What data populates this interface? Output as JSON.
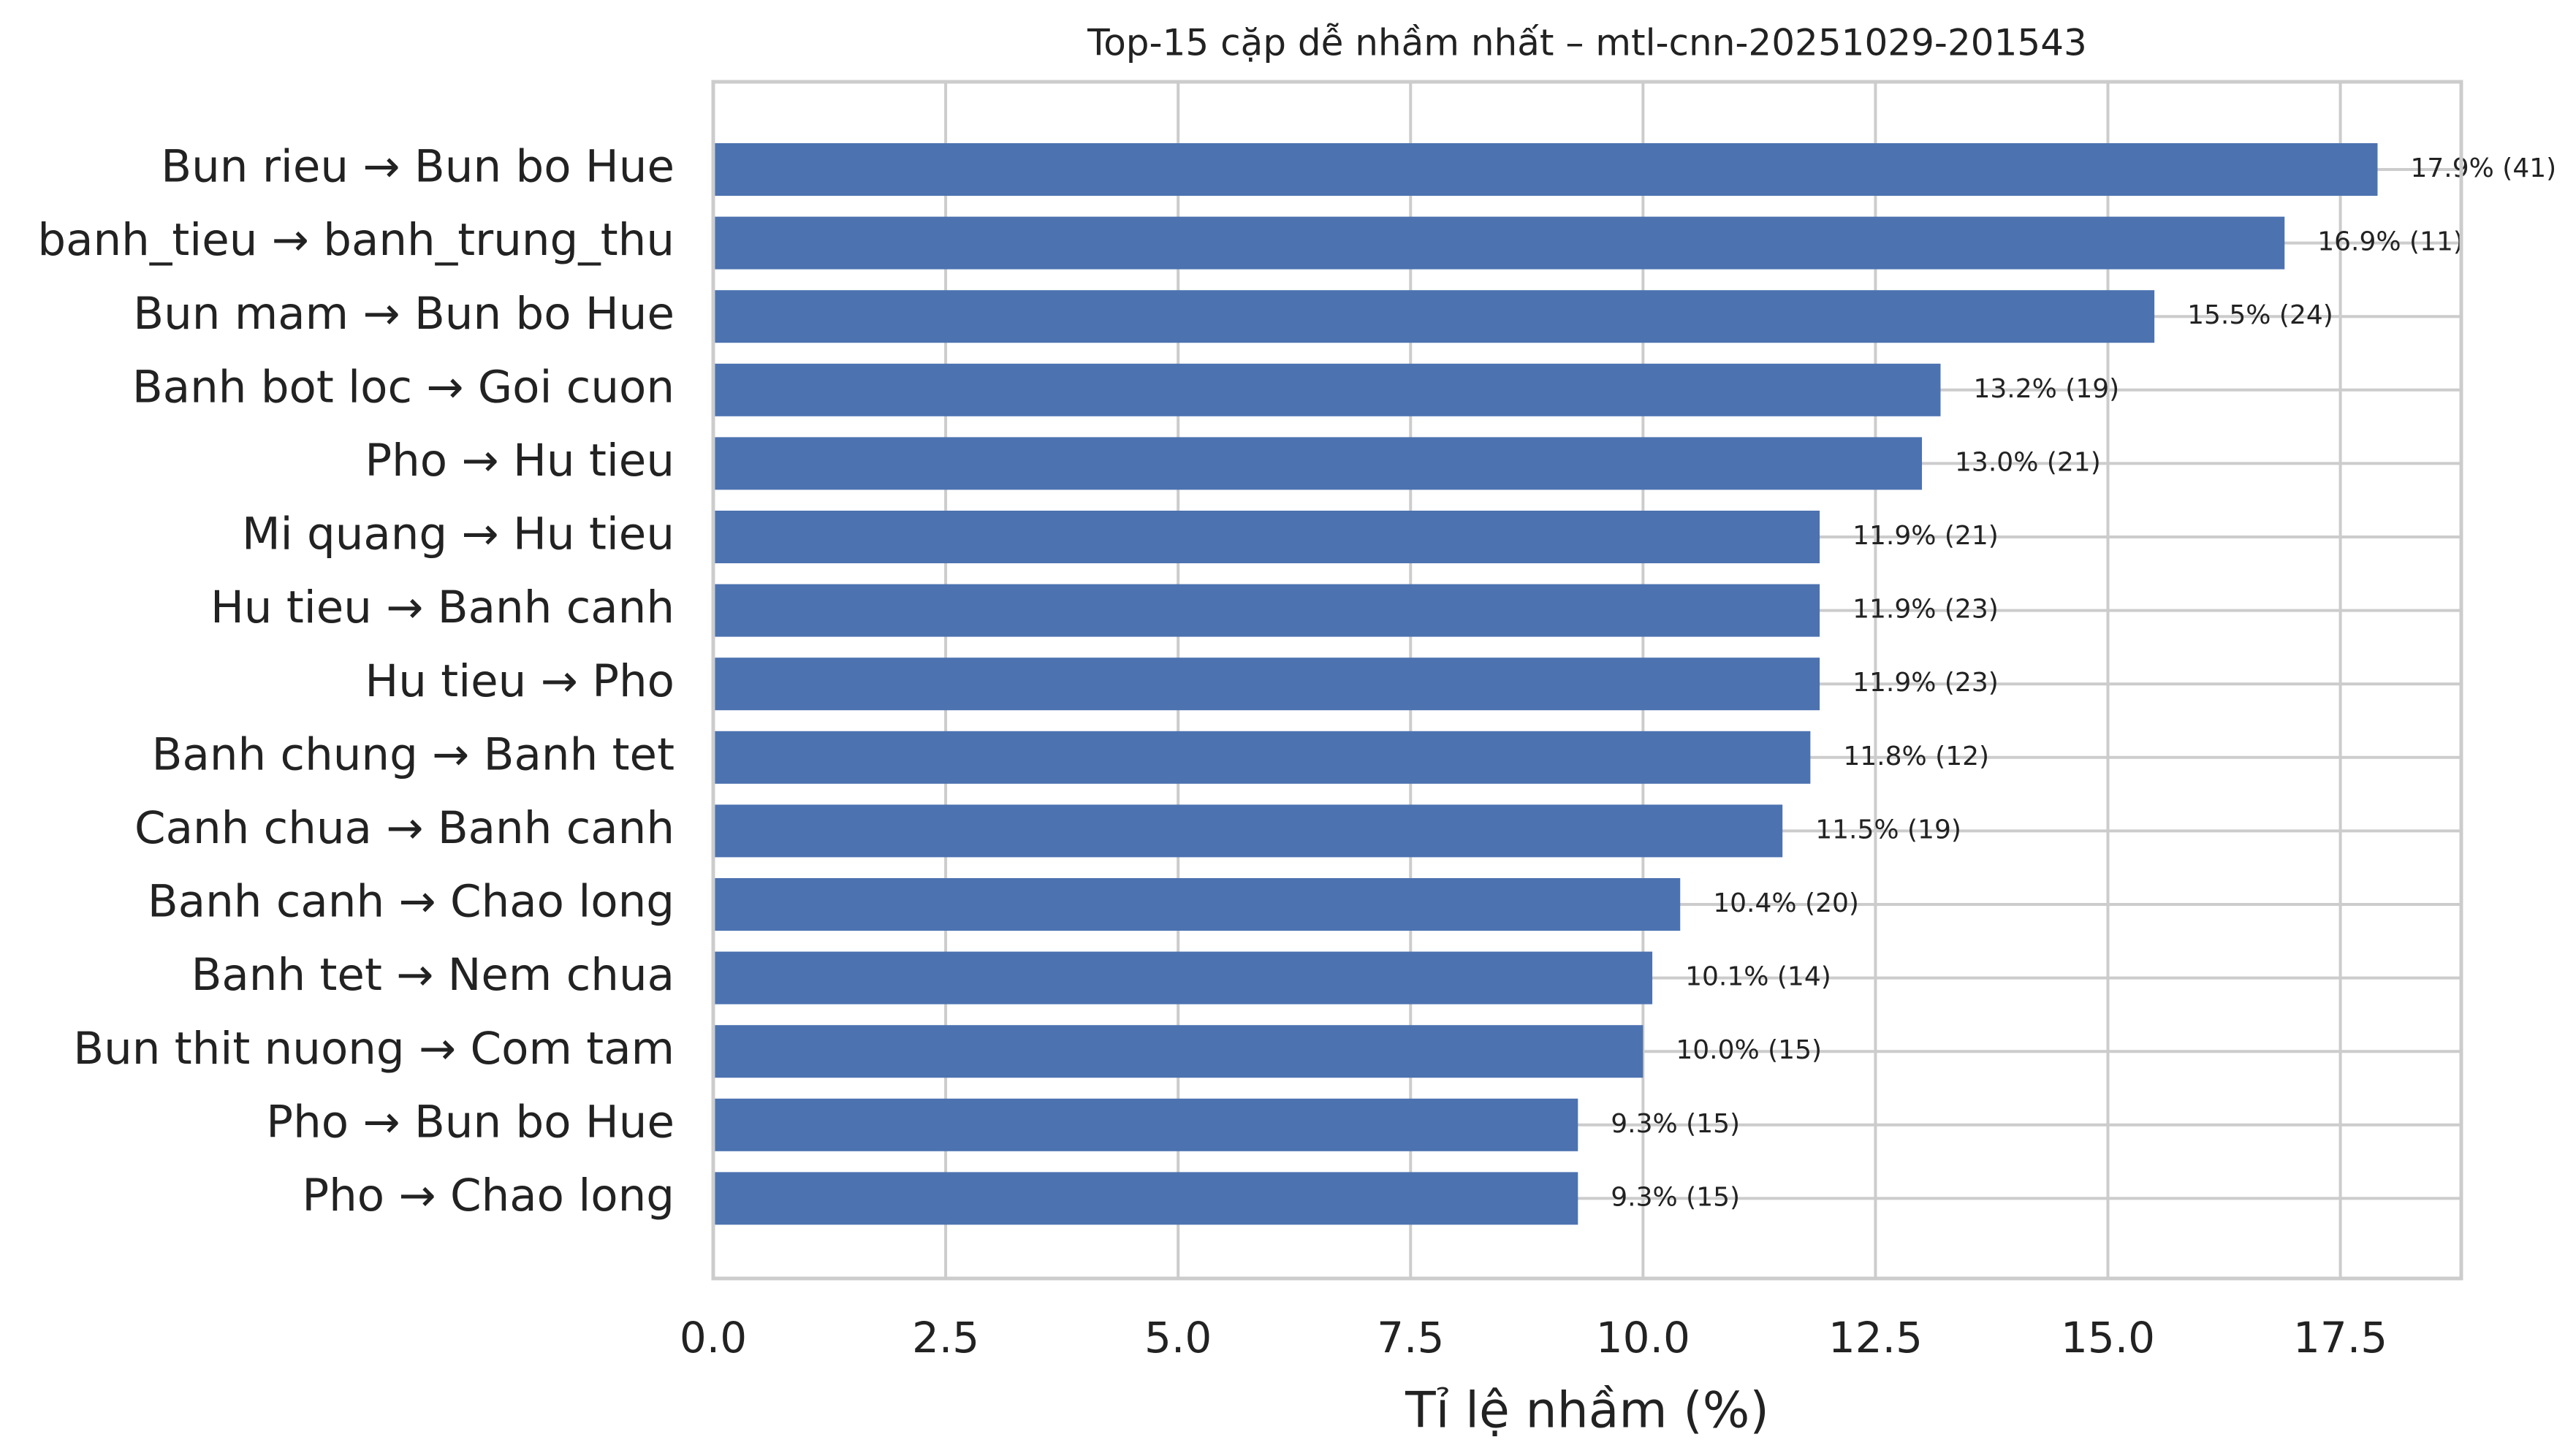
{
  "chart_data": {
    "type": "barh",
    "title": "Top-15 cặp dễ nhầm nhất – mtl-cnn-20251029-201543",
    "x_label": "Tỉ lệ nhầm (%)",
    "categories": [
      "Bun rieu → Bun bo Hue",
      "banh_tieu → banh_trung_thu",
      "Bun mam → Bun bo Hue",
      "Banh bot loc → Goi cuon",
      "Pho → Hu tieu",
      "Mi quang → Hu tieu",
      "Hu tieu → Banh canh",
      "Hu tieu → Pho",
      "Banh chung → Banh tet",
      "Canh chua → Banh canh",
      "Banh canh → Chao long",
      "Banh tet → Nem chua",
      "Bun thit nuong → Com tam",
      "Pho → Bun bo Hue",
      "Pho → Chao long"
    ],
    "values": [
      17.9,
      16.9,
      15.5,
      13.2,
      13.0,
      11.9,
      11.9,
      11.9,
      11.8,
      11.5,
      10.4,
      10.1,
      10.0,
      9.3,
      9.3
    ],
    "value_labels": [
      "17.9% (41)",
      "16.9% (11)",
      "15.5% (24)",
      "13.2% (19)",
      "13.0% (21)",
      "11.9% (21)",
      "11.9% (23)",
      "11.9% (23)",
      "11.8% (12)",
      "11.5% (19)",
      "10.4% (20)",
      "10.1% (14)",
      "10.0% (15)",
      "9.3% (15)",
      "9.3% (15)"
    ],
    "color": "#4c72b0",
    "xlim": [
      0,
      18.8
    ],
    "xticks": [
      {
        "value": 0,
        "label": "0.0"
      },
      2.5,
      {
        "value": 5,
        "label": "5.0"
      },
      7.5,
      {
        "value": 10,
        "label": "10.0"
      },
      12.5,
      {
        "value": 15,
        "label": "15.0"
      },
      17.5
    ],
    "grid": true
  }
}
